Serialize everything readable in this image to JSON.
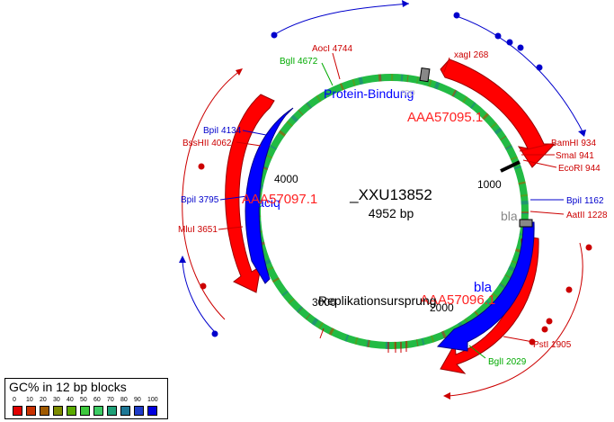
{
  "plasmid": {
    "name": "_XXU13852",
    "size_label": "4952 bp",
    "ticks": [
      "1000",
      "2000",
      "3000",
      "4000"
    ]
  },
  "features": {
    "aaa57095": "AAA57095.1",
    "aaa57096": "AAA57096.1",
    "aaa57097": "AAA57097.1",
    "laciq": "laciq",
    "bla_inner": "bla",
    "bla_outer": "bla",
    "protein_binding": "Protein-Bindung",
    "replikation": "Replikationsursprung",
    "rop": "rop"
  },
  "sites": {
    "aocl": "AocI 4744",
    "bgll_4672": "BglI 4672",
    "xagl": "xagI 268",
    "bpil_4134": "BpiI 4134",
    "bssshii": "BssHII 4062",
    "bpil_3795": "BpiI 3795",
    "mlul": "MluI 3651",
    "bamhi": "BamHI 934",
    "smai": "SmaI 941",
    "ecori": "EcoRI 944",
    "bpil_1162": "BpiI 1162",
    "aatii": "AatII 1228",
    "pstl": "PstI 1905",
    "bgll_2029": "BglI 2029"
  },
  "legend": {
    "title": "GC% in 12 bp blocks",
    "ticks": [
      "0",
      "10",
      "20",
      "30",
      "40",
      "50",
      "60",
      "70",
      "80",
      "90",
      "100"
    ],
    "colors": [
      "#e00000",
      "#c83200",
      "#a05a00",
      "#7d8c00",
      "#5aaa00",
      "#3cc83c",
      "#3ccc64",
      "#1ea078",
      "#1e7896",
      "#1e3cc8",
      "#0000e0"
    ]
  },
  "colors": {
    "enzyme_red": "#cc0000",
    "enzyme_blue": "#0000cc",
    "enzyme_green": "#00aa00",
    "feature_red": "#ff0000",
    "feature_blue": "#0000ff",
    "bla_gray": "#888888"
  }
}
